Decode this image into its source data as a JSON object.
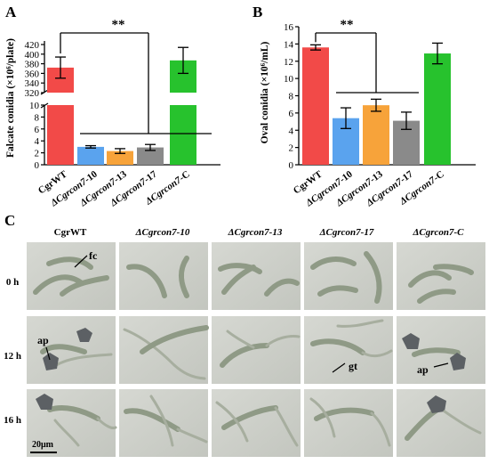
{
  "panel_labels": {
    "a": "A",
    "b": "B",
    "c": "C"
  },
  "significance": "**",
  "colors": {
    "cgrwt": "#f24a48",
    "m10": "#5aa3ee",
    "m13": "#f7a33a",
    "m17": "#8a8a8a",
    "comp": "#27c22d"
  },
  "chart_data": [
    {
      "type": "bar",
      "panel": "A",
      "ylabel": "Falcate conidia (×10⁶/plate)",
      "categories": [
        "CgrWT",
        "ΔCgrcon7-10",
        "ΔCgrcon7-13",
        "ΔCgrcon7-17",
        "ΔCgrcon7-C"
      ],
      "values": [
        372,
        3.0,
        2.3,
        2.9,
        387
      ],
      "errors": [
        22,
        0.2,
        0.4,
        0.5,
        27
      ],
      "broken_axis": {
        "lower_range": [
          0,
          10
        ],
        "upper_range": [
          320,
          420
        ]
      },
      "yticks_lower": [
        "0",
        "2",
        "4",
        "6",
        "8",
        "10"
      ],
      "yticks_upper": [
        "320",
        "340",
        "360",
        "380",
        "400",
        "420"
      ],
      "significance": "**"
    },
    {
      "type": "bar",
      "panel": "B",
      "ylabel": "Oval conidia (×10⁶/mL)",
      "categories": [
        "CgrWT",
        "ΔCgrcon7-10",
        "ΔCgrcon7-13",
        "ΔCgrcon7-17",
        "ΔCgrcon7-C"
      ],
      "values": [
        13.6,
        5.4,
        6.9,
        5.1,
        12.9
      ],
      "errors": [
        0.3,
        1.2,
        0.7,
        1.0,
        1.2
      ],
      "ylim": [
        0,
        16
      ],
      "yticks": [
        "0",
        "2",
        "4",
        "6",
        "8",
        "10",
        "12",
        "14",
        "16"
      ],
      "significance": "**"
    }
  ],
  "panel_c": {
    "columns": [
      "CgrWT",
      "ΔCgrcon7-10",
      "ΔCgrcon7-13",
      "ΔCgrcon7-17",
      "ΔCgrcon7-C"
    ],
    "rows": [
      "0 h",
      "12 h",
      "16 h"
    ],
    "annotations": {
      "fc": "fc",
      "ap1": "ap",
      "gt": "gt",
      "ap2": "ap"
    },
    "scale_bar": "20μm"
  }
}
